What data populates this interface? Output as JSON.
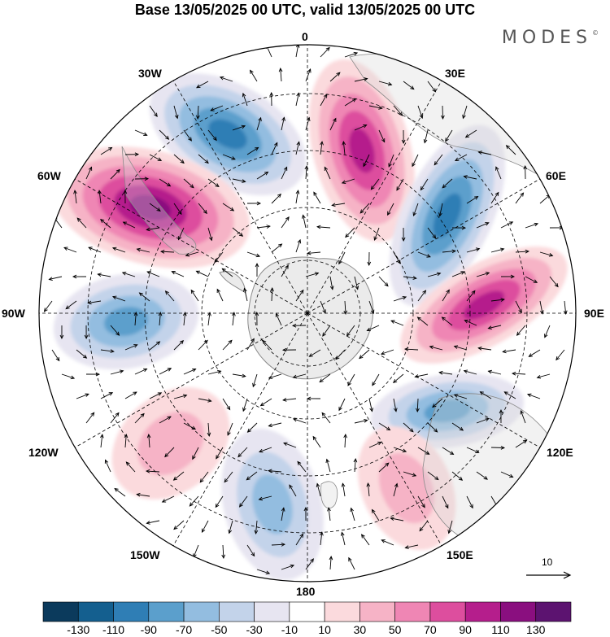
{
  "header": {
    "title": "Base 13/05/2025 00 UTC, valid 13/05/2025 00 UTC",
    "brand": "MODES",
    "brand_mark": "©"
  },
  "map": {
    "projection": "south-polar-stereographic",
    "longitude_labels": {
      "0": "0",
      "30E": "30E",
      "60E": "60E",
      "90E": "90E",
      "120E": "120E",
      "150E": "150E",
      "180": "180",
      "150W": "150W",
      "120W": "120W",
      "90W": "90W",
      "60W": "60W",
      "30W": "30W"
    },
    "vector_scale_label": "10",
    "colors": {
      "land": "#e8e8e8",
      "coast": "#888888"
    }
  },
  "legend": {
    "levels": [
      -130,
      -110,
      -90,
      -70,
      -50,
      -30,
      -10,
      10,
      30,
      50,
      70,
      90,
      110,
      130
    ],
    "tick_labels": [
      "-130",
      "-110",
      "-90",
      "-70",
      "-50",
      "-30",
      "-10",
      "10",
      "30",
      "50",
      "70",
      "90",
      "110",
      "130"
    ],
    "colors": [
      "#0b3a5c",
      "#145f8f",
      "#2f7eb5",
      "#5b9fcc",
      "#93bde0",
      "#c3d3ea",
      "#e7e5f1",
      "#ffffff",
      "#fbdadd",
      "#f6b3c6",
      "#ef86b4",
      "#dd4e9e",
      "#b51e8c",
      "#8a0f7f",
      "#5c1370"
    ]
  },
  "anomaly_centers": [
    {
      "name": "neg-30W",
      "value": -110
    },
    {
      "name": "pos-60W",
      "value": 130
    },
    {
      "name": "neg-90W",
      "value": -90
    },
    {
      "name": "pos-120W",
      "value": 50
    },
    {
      "name": "neg-165W",
      "value": -70
    },
    {
      "name": "pos-15E",
      "value": 110
    },
    {
      "name": "neg-55E",
      "value": -110
    },
    {
      "name": "pos-95E",
      "value": 110
    },
    {
      "name": "neg-125E",
      "value": -90
    },
    {
      "name": "pos-150E",
      "value": 50
    }
  ]
}
